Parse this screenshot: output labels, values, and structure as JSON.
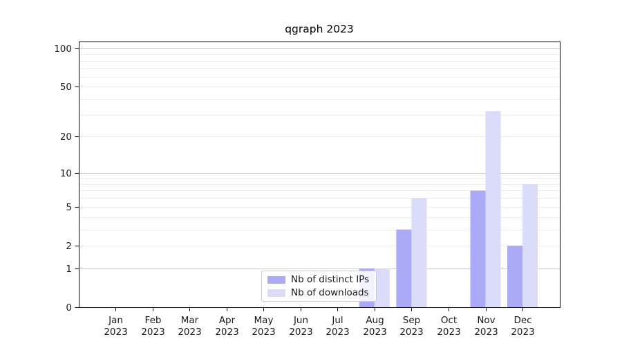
{
  "title": "qgraph 2023",
  "legend": {
    "items": [
      {
        "label": "Nb of distinct IPs",
        "color": "#aaaaf8"
      },
      {
        "label": "Nb of downloads",
        "color": "#dbdbfa"
      }
    ]
  },
  "chart_data": {
    "type": "bar",
    "title": "qgraph 2023",
    "categories": [
      "Jan 2023",
      "Feb 2023",
      "Mar 2023",
      "Apr 2023",
      "May 2023",
      "Jun 2023",
      "Jul 2023",
      "Aug 2023",
      "Sep 2023",
      "Oct 2023",
      "Nov 2023",
      "Dec 2023"
    ],
    "series": [
      {
        "name": "Nb of distinct IPs",
        "color": "#aaaaf8",
        "values": [
          0,
          0,
          0,
          0,
          0,
          0,
          0,
          1,
          3,
          0,
          7,
          2
        ]
      },
      {
        "name": "Nb of downloads",
        "color": "#dbdbfa",
        "values": [
          0,
          0,
          0,
          0,
          0,
          0,
          0,
          1,
          6,
          0,
          32,
          8
        ]
      }
    ],
    "xlabel": "",
    "ylabel": "",
    "y_scale": "log10(1+value)",
    "ylim": [
      0,
      113
    ],
    "y_ticks": [
      0,
      1,
      2,
      5,
      10,
      20,
      50,
      100
    ],
    "y_major_gridlines": [
      1,
      10,
      100
    ],
    "y_minor_gridlines": [
      2,
      3,
      4,
      5,
      6,
      7,
      8,
      9,
      20,
      30,
      40,
      50,
      60,
      70,
      80,
      90
    ],
    "grid": true,
    "legend_position": "lower center",
    "colors": {
      "major_grid": "#c9c9c9",
      "minor_grid": "#ececec",
      "spine": "#000000",
      "tick_text": "#1a1a1a",
      "background": "#ffffff"
    }
  }
}
